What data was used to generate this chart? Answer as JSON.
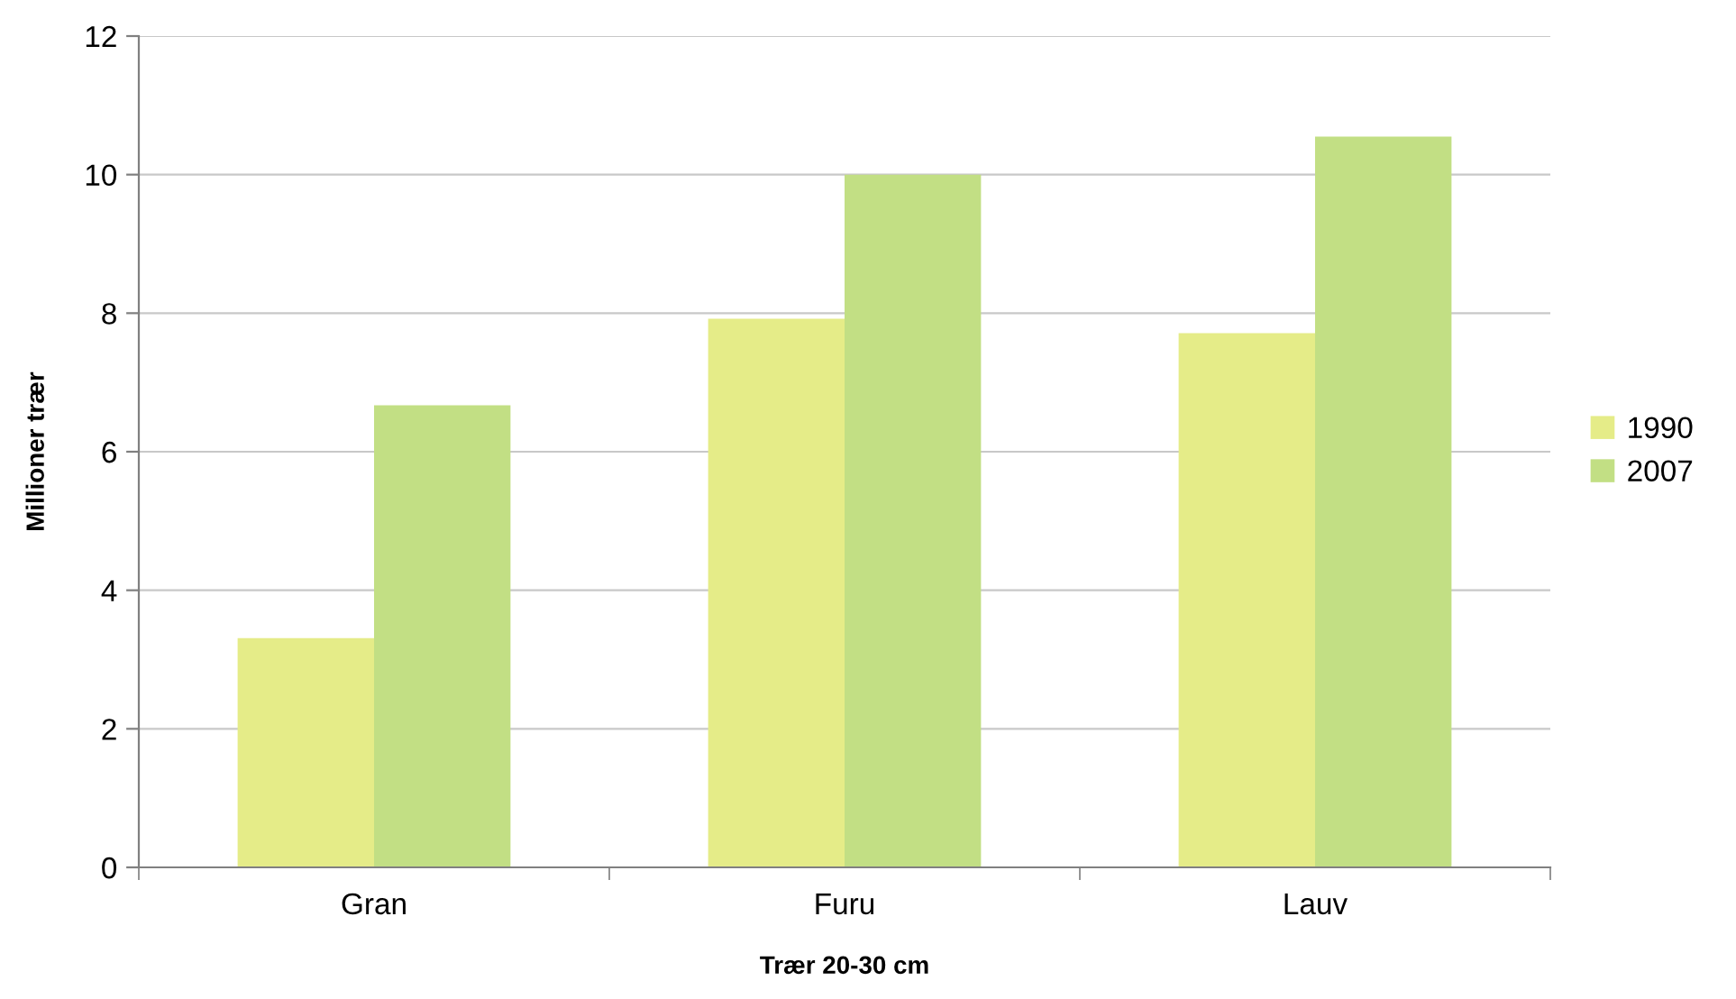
{
  "chart_data": {
    "type": "bar",
    "xlabel": "Trær 20-30 cm",
    "ylabel": "Millioner trær",
    "categories": [
      "Gran",
      "Furu",
      "Lauv"
    ],
    "series": [
      {
        "name": "1990",
        "color": "#e5ec88",
        "values": [
          3.31,
          7.92,
          7.71
        ]
      },
      {
        "name": "2007",
        "color": "#c2df84",
        "values": [
          6.67,
          10.0,
          10.55
        ]
      }
    ],
    "ylim": [
      0,
      12
    ],
    "yticks": [
      0,
      2,
      4,
      6,
      8,
      10,
      12
    ],
    "grid": "y",
    "legend": "right"
  }
}
